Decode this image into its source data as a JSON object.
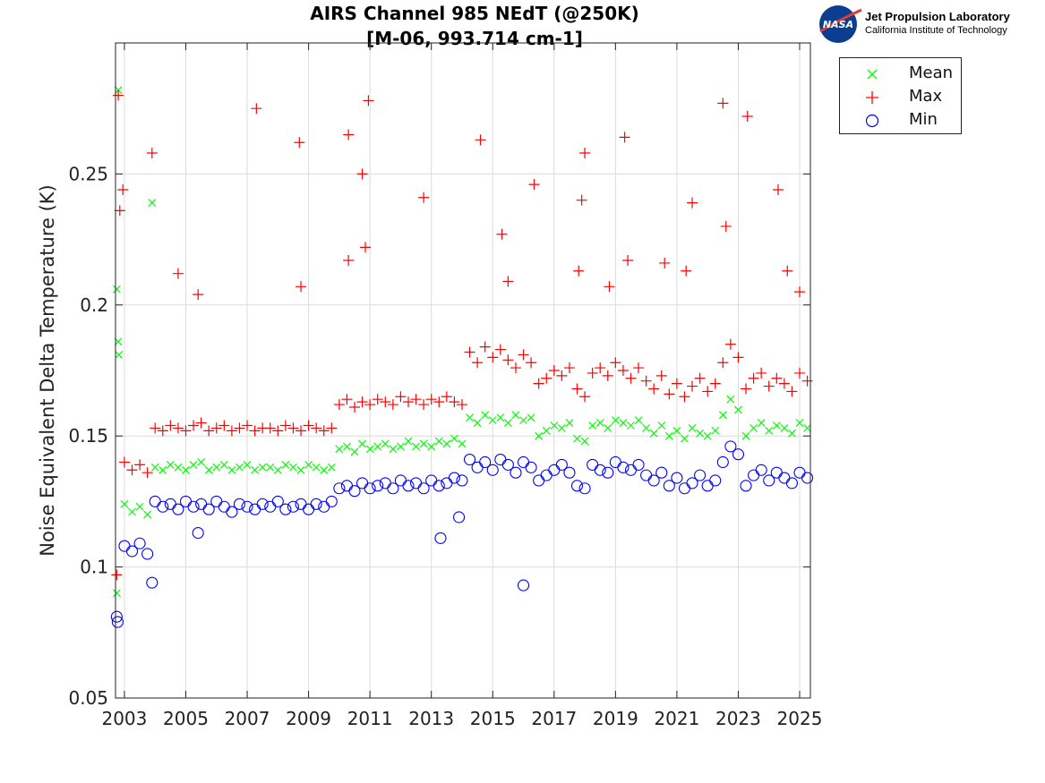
{
  "header": {
    "title_line1": "AIRS Channel 985 NEdT (@250K)",
    "title_line2": "[M-06, 993.714 cm-1]"
  },
  "logo": {
    "org": "Jet Propulsion Laboratory",
    "sub": "California Institute of Technology",
    "badge": "NASA"
  },
  "chart_data": {
    "type": "scatter",
    "title": "AIRS Channel 985 NEdT (@250K) [M-06, 993.714 cm-1]",
    "xlabel": "",
    "ylabel": "Noise Equivalent Delta Temperature (K)",
    "xlim": [
      2002.71,
      2025.35
    ],
    "ylim": [
      0.05,
      0.3
    ],
    "xticks": [
      2003,
      2005,
      2007,
      2009,
      2011,
      2013,
      2015,
      2017,
      2019,
      2021,
      2023,
      2025
    ],
    "xtick_labels": [
      "2003",
      "2005",
      "2007",
      "2009",
      "2011",
      "2013",
      "2015",
      "2017",
      "2019",
      "2021",
      "2023",
      "2025"
    ],
    "yticks": [
      0.05,
      0.1,
      0.15,
      0.2,
      0.25
    ],
    "ytick_labels": [
      "0.05",
      "0.1",
      "0.15",
      "0.2",
      "0.25"
    ],
    "grid": true,
    "legend_placement": "outside-top-right",
    "x": [
      2002.75,
      2003,
      2003.25,
      2003.5,
      2003.75,
      2004,
      2004.25,
      2004.5,
      2004.75,
      2005,
      2005.25,
      2005.5,
      2005.75,
      2006,
      2006.25,
      2006.5,
      2006.75,
      2007,
      2007.25,
      2007.5,
      2007.75,
      2008,
      2008.25,
      2008.5,
      2008.75,
      2009,
      2009.25,
      2009.5,
      2009.75,
      2010,
      2010.25,
      2010.5,
      2010.75,
      2011,
      2011.25,
      2011.5,
      2011.75,
      2012,
      2012.25,
      2012.5,
      2012.75,
      2013,
      2013.25,
      2013.5,
      2013.75,
      2014,
      2014.25,
      2014.5,
      2014.75,
      2015,
      2015.25,
      2015.5,
      2015.75,
      2016,
      2016.25,
      2016.5,
      2016.75,
      2017,
      2017.25,
      2017.5,
      2017.75,
      2018,
      2018.25,
      2018.5,
      2018.75,
      2019,
      2019.25,
      2019.5,
      2019.75,
      2020,
      2020.25,
      2020.5,
      2020.75,
      2021,
      2021.25,
      2021.5,
      2021.75,
      2022,
      2022.25,
      2022.5,
      2022.75,
      2023,
      2023.25,
      2023.5,
      2023.75,
      2024,
      2024.25,
      2024.5,
      2024.75,
      2025,
      2025.25
    ],
    "series": [
      {
        "name": "Mean",
        "marker": "x",
        "color": "#00ff00",
        "values": [
          0.09,
          0.124,
          0.121,
          0.123,
          0.12,
          0.138,
          0.137,
          0.139,
          0.138,
          0.137,
          0.139,
          0.14,
          0.137,
          0.138,
          0.139,
          0.137,
          0.138,
          0.139,
          0.137,
          0.138,
          0.138,
          0.137,
          0.139,
          0.138,
          0.137,
          0.139,
          0.138,
          0.137,
          0.138,
          0.145,
          0.146,
          0.144,
          0.147,
          0.145,
          0.146,
          0.147,
          0.145,
          0.146,
          0.148,
          0.146,
          0.147,
          0.146,
          0.148,
          0.147,
          0.149,
          0.147,
          0.157,
          0.155,
          0.158,
          0.156,
          0.157,
          0.155,
          0.158,
          0.156,
          0.157,
          0.15,
          0.152,
          0.154,
          0.153,
          0.155,
          0.149,
          0.148,
          0.154,
          0.155,
          0.153,
          0.156,
          0.155,
          0.154,
          0.156,
          0.153,
          0.151,
          0.154,
          0.15,
          0.152,
          0.149,
          0.153,
          0.151,
          0.15,
          0.152,
          0.158,
          0.164,
          0.16,
          0.15,
          0.153,
          0.155,
          0.152,
          0.154,
          0.153,
          0.151,
          0.155,
          0.153
        ],
        "outliers": [
          [
            2002.8,
            0.282
          ],
          [
            2002.75,
            0.206
          ],
          [
            2002.8,
            0.186
          ],
          [
            2002.82,
            0.181
          ],
          [
            2003.9,
            0.239
          ]
        ]
      },
      {
        "name": "Max",
        "marker": "+",
        "color": "#ff0000",
        "values": [
          0.097,
          0.14,
          0.137,
          0.139,
          0.136,
          0.153,
          0.152,
          0.154,
          0.153,
          0.152,
          0.154,
          0.155,
          0.152,
          0.153,
          0.154,
          0.152,
          0.153,
          0.154,
          0.152,
          0.153,
          0.153,
          0.152,
          0.154,
          0.153,
          0.152,
          0.154,
          0.153,
          0.152,
          0.153,
          0.162,
          0.164,
          0.161,
          0.163,
          0.162,
          0.164,
          0.163,
          0.162,
          0.165,
          0.163,
          0.164,
          0.162,
          0.164,
          0.163,
          0.165,
          0.163,
          0.162,
          0.182,
          0.178,
          0.184,
          0.18,
          0.183,
          0.179,
          0.176,
          0.181,
          0.178,
          0.17,
          0.172,
          0.175,
          0.173,
          0.176,
          0.168,
          0.165,
          0.174,
          0.176,
          0.173,
          0.178,
          0.175,
          0.172,
          0.176,
          0.171,
          0.168,
          0.173,
          0.166,
          0.17,
          0.165,
          0.169,
          0.172,
          0.167,
          0.17,
          0.178,
          0.185,
          0.18,
          0.168,
          0.172,
          0.174,
          0.169,
          0.172,
          0.17,
          0.167,
          0.174,
          0.171
        ],
        "outliers": [
          [
            2002.8,
            0.28
          ],
          [
            2002.85,
            0.236
          ],
          [
            2002.95,
            0.244
          ],
          [
            2003.9,
            0.258
          ],
          [
            2004.75,
            0.212
          ],
          [
            2005.4,
            0.204
          ],
          [
            2007.3,
            0.275
          ],
          [
            2008.7,
            0.262
          ],
          [
            2008.75,
            0.207
          ],
          [
            2010.3,
            0.265
          ],
          [
            2010.3,
            0.217
          ],
          [
            2010.75,
            0.25
          ],
          [
            2010.85,
            0.222
          ],
          [
            2010.95,
            0.278
          ],
          [
            2012.75,
            0.241
          ],
          [
            2014.6,
            0.263
          ],
          [
            2015.3,
            0.227
          ],
          [
            2015.5,
            0.209
          ],
          [
            2016.35,
            0.246
          ],
          [
            2017.8,
            0.213
          ],
          [
            2017.9,
            0.24
          ],
          [
            2018.0,
            0.258
          ],
          [
            2018.8,
            0.207
          ],
          [
            2019.3,
            0.264
          ],
          [
            2019.4,
            0.217
          ],
          [
            2020.6,
            0.216
          ],
          [
            2021.3,
            0.213
          ],
          [
            2021.5,
            0.239
          ],
          [
            2022.5,
            0.277
          ],
          [
            2022.6,
            0.23
          ],
          [
            2023.3,
            0.272
          ],
          [
            2024.3,
            0.244
          ],
          [
            2024.6,
            0.213
          ],
          [
            2025.0,
            0.205
          ]
        ]
      },
      {
        "name": "Min",
        "marker": "o",
        "color": "#0000ff",
        "values": [
          0.081,
          0.108,
          0.106,
          0.109,
          0.105,
          0.125,
          0.123,
          0.124,
          0.122,
          0.125,
          0.123,
          0.124,
          0.122,
          0.125,
          0.123,
          0.121,
          0.124,
          0.123,
          0.122,
          0.124,
          0.123,
          0.125,
          0.122,
          0.123,
          0.124,
          0.122,
          0.124,
          0.123,
          0.125,
          0.13,
          0.131,
          0.129,
          0.132,
          0.13,
          0.131,
          0.132,
          0.13,
          0.133,
          0.131,
          0.132,
          0.13,
          0.133,
          0.131,
          0.132,
          0.134,
          0.133,
          0.141,
          0.138,
          0.14,
          0.137,
          0.141,
          0.139,
          0.136,
          0.14,
          0.138,
          0.133,
          0.135,
          0.137,
          0.139,
          0.136,
          0.131,
          0.13,
          0.139,
          0.137,
          0.136,
          0.14,
          0.138,
          0.137,
          0.139,
          0.135,
          0.133,
          0.136,
          0.131,
          0.134,
          0.13,
          0.132,
          0.135,
          0.131,
          0.133,
          0.14,
          0.146,
          0.143,
          0.131,
          0.135,
          0.137,
          0.133,
          0.136,
          0.134,
          0.132,
          0.136,
          0.134
        ],
        "outliers": [
          [
            2005.4,
            0.113
          ],
          [
            2003.9,
            0.094
          ],
          [
            2013.3,
            0.111
          ],
          [
            2016.0,
            0.093
          ],
          [
            2013.9,
            0.119
          ],
          [
            2002.78,
            0.079
          ]
        ]
      }
    ]
  }
}
